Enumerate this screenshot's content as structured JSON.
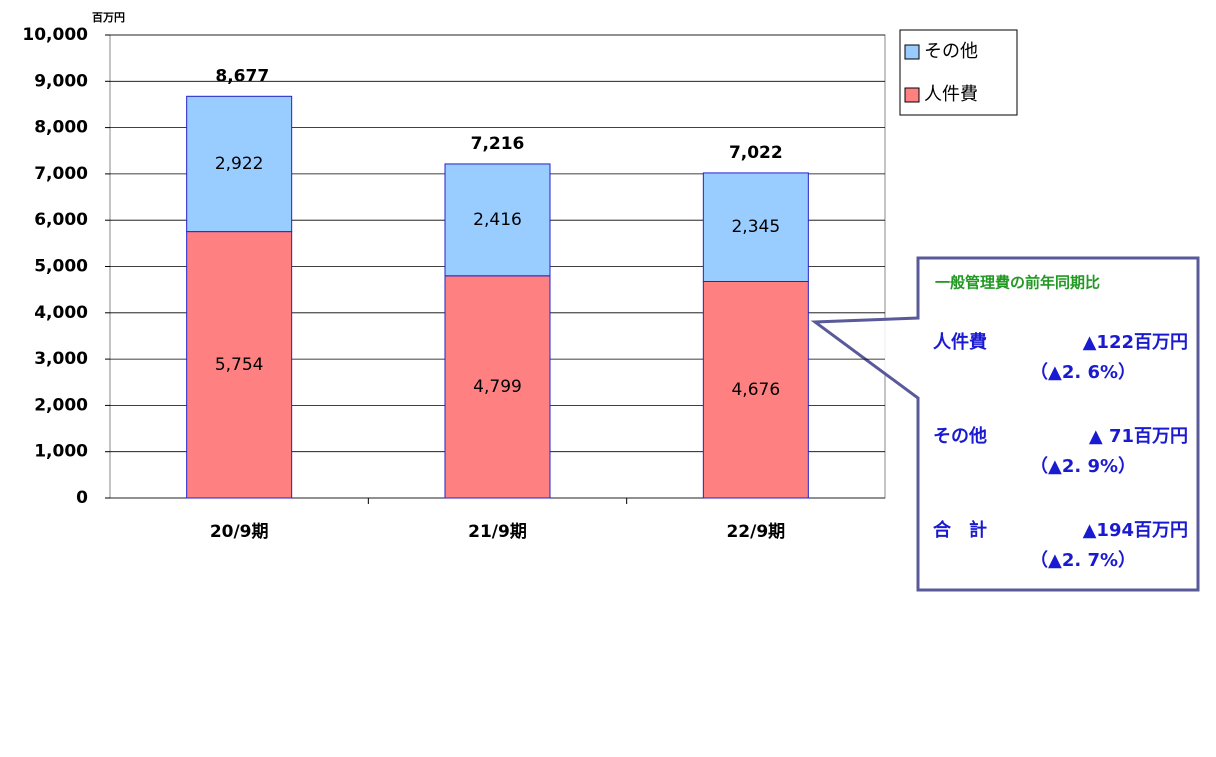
{
  "chart_data": {
    "type": "stacked_bar",
    "unit_label": "百万円",
    "categories": [
      "20/9期",
      "21/9期",
      "22/9期"
    ],
    "series": [
      {
        "name": "人件費",
        "color": "#ff8080",
        "values": [
          5754,
          4799,
          4676
        ],
        "value_labels": [
          "5,754",
          "4,799",
          "4,676"
        ]
      },
      {
        "name": "その他",
        "color": "#99ccff",
        "values": [
          2922,
          2416,
          2345
        ],
        "value_labels": [
          "2,922",
          "2,416",
          "2,345"
        ]
      }
    ],
    "totals": {
      "values": [
        8677,
        7216,
        7022
      ],
      "value_labels": [
        "8,677",
        "7,216",
        "7,022"
      ]
    },
    "ylim": [
      0,
      10000
    ],
    "yticks": [
      0,
      {
        "value": 1000,
        "label": "1,000"
      },
      {
        "value": 2000,
        "label": "2,000"
      },
      {
        "value": 3000,
        "label": "3,000"
      },
      {
        "value": 4000,
        "label": "4,000"
      },
      {
        "value": 5000,
        "label": "5,000"
      },
      {
        "value": 6000,
        "label": "6,000"
      },
      {
        "value": 7000,
        "label": "7,000"
      },
      {
        "value": 8000,
        "label": "8,000"
      },
      {
        "value": 9000,
        "label": "9,000"
      },
      {
        "value": 10000,
        "label": "10,000"
      }
    ],
    "grid": true,
    "legend": "top-right",
    "callout": {
      "title": "一般管理費の前年同期比",
      "rows": [
        {
          "label": "人件費",
          "amount": "▲122百万円",
          "pct": "（▲2. 6%）"
        },
        {
          "label": "その他",
          "amount": "▲ 71百万円",
          "pct": "（▲2. 9%）"
        },
        {
          "label": "合　計",
          "amount": "▲194百万円",
          "pct": "（▲2. 7%）"
        }
      ]
    }
  }
}
